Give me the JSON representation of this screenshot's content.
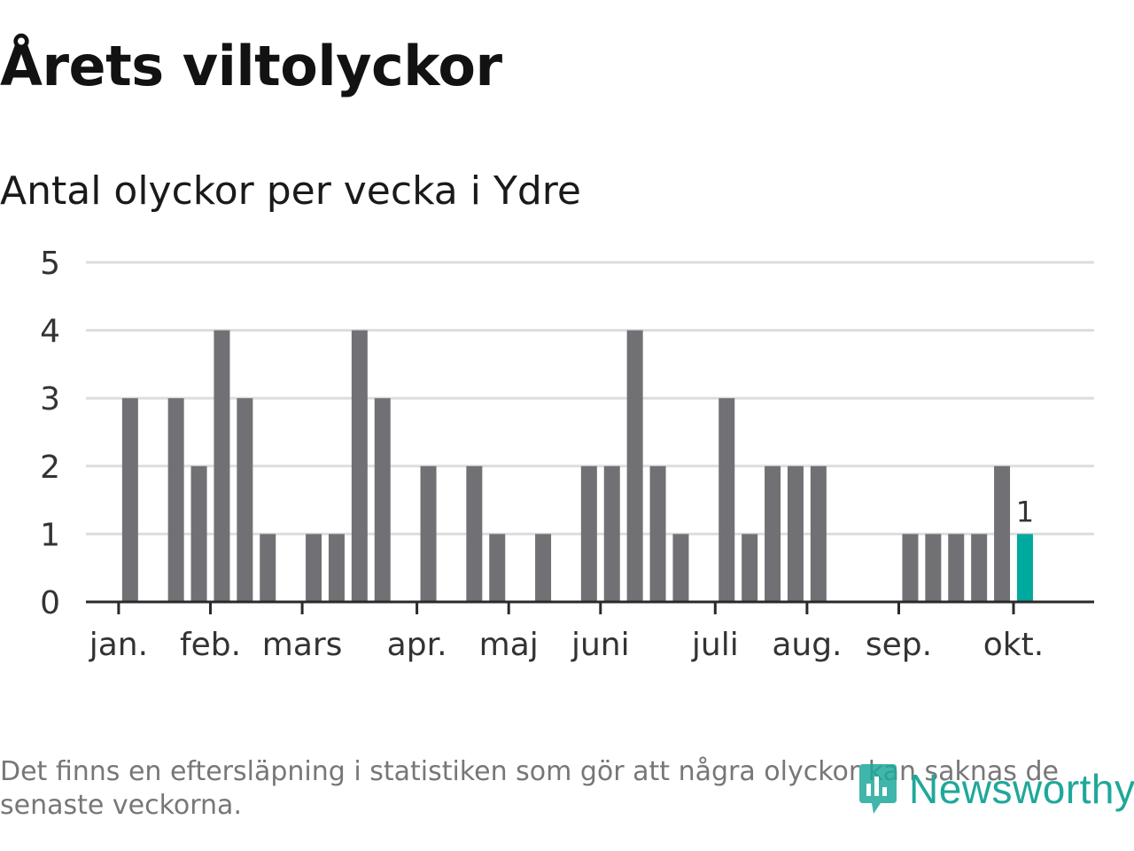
{
  "header": {
    "title": "Årets viltolyckor",
    "subtitle": "Antal olyckor per vecka i Ydre"
  },
  "colors": {
    "bar": "#717074",
    "highlight": "#00a99d",
    "grid": "#dddddd",
    "axis": "#2a2a2a",
    "logo": "#1fa89a"
  },
  "chart_data": {
    "type": "bar",
    "title": "Antal olyckor per vecka i Ydre",
    "xlabel": "",
    "ylabel": "",
    "ylim": [
      0,
      5
    ],
    "yticks": [
      "0",
      "1",
      "2",
      "3",
      "4",
      "5"
    ],
    "grid": true,
    "x": [
      1,
      2,
      3,
      4,
      5,
      6,
      7,
      8,
      9,
      10,
      11,
      12,
      13,
      14,
      15,
      16,
      17,
      18,
      19,
      20,
      21,
      22,
      23,
      24,
      25,
      26,
      27,
      28,
      29,
      30,
      31,
      32,
      33,
      34,
      35,
      36,
      37,
      38,
      39,
      40,
      41,
      42,
      43
    ],
    "values": [
      0,
      3,
      0,
      3,
      2,
      4,
      3,
      1,
      0,
      1,
      1,
      4,
      3,
      0,
      2,
      0,
      2,
      1,
      0,
      1,
      0,
      2,
      2,
      4,
      2,
      1,
      0,
      3,
      1,
      2,
      2,
      2,
      0,
      0,
      0,
      1,
      1,
      1,
      1,
      2,
      1,
      0,
      0
    ],
    "highlight_index": 40,
    "highlight_label": "1",
    "month_ticks": [
      {
        "label": "jan.",
        "week": 1.5
      },
      {
        "label": "feb.",
        "week": 5.5
      },
      {
        "label": "mars",
        "week": 9.5
      },
      {
        "label": "apr.",
        "week": 14.5
      },
      {
        "label": "maj",
        "week": 18.5
      },
      {
        "label": "juni",
        "week": 22.5
      },
      {
        "label": "juli",
        "week": 27.5
      },
      {
        "label": "aug.",
        "week": 31.5
      },
      {
        "label": "sep.",
        "week": 35.5
      },
      {
        "label": "okt.",
        "week": 40.5
      }
    ]
  },
  "footnote": "Det finns en eftersläpning i statistiken som gör att några olyckor kan saknas de senaste veckorna.",
  "logo": {
    "text": "Newsworthy",
    "icon": "newsworthy-logo-icon"
  }
}
